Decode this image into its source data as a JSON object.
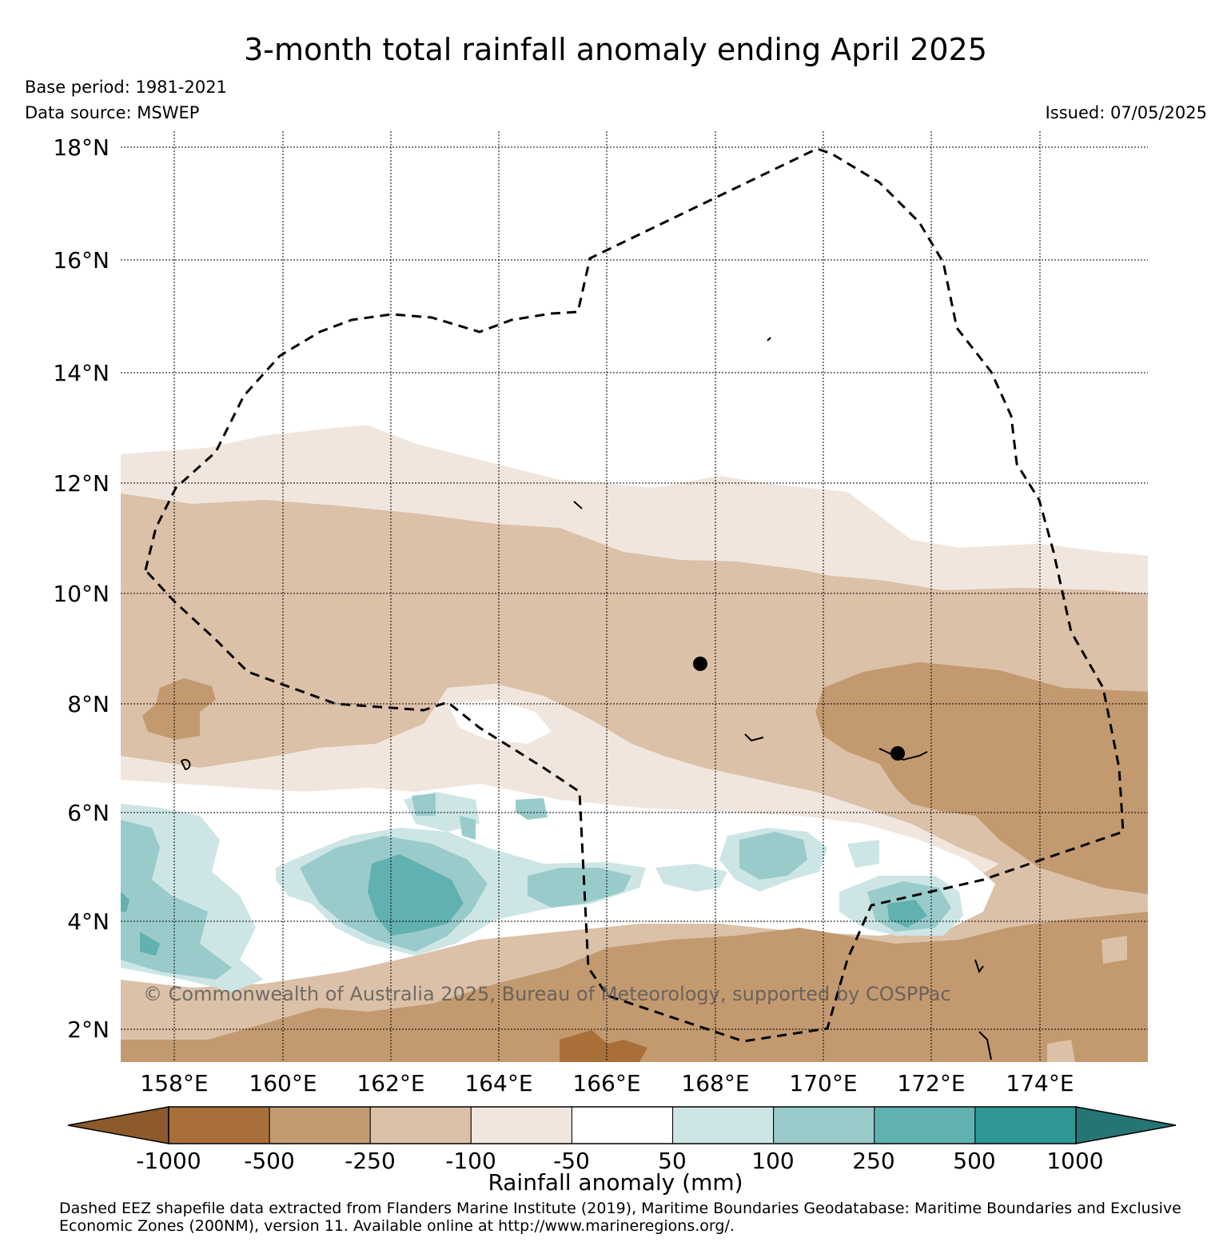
{
  "header": {
    "title": "3-month total rainfall anomaly ending April 2025",
    "base_period": "Base period: 1981-2021",
    "data_source": "Data source: MSWEP",
    "issued": "Issued: 07/05/2025"
  },
  "map": {
    "lat_labels": [
      "18°N",
      "16°N",
      "14°N",
      "12°N",
      "10°N",
      "8°N",
      "6°N",
      "4°N",
      "2°N"
    ],
    "lon_labels": [
      "158°E",
      "160°E",
      "162°E",
      "164°E",
      "166°E",
      "168°E",
      "170°E",
      "172°E",
      "174°E"
    ],
    "watermark": "© Commonwealth of Australia 2025, Bureau of Meteorology, supported by COSPPac",
    "boundary_style": "dashed EEZ boundary",
    "grid": true
  },
  "colorbar": {
    "label": "Rainfall anomaly (mm)",
    "ticks": [
      "-1000",
      "-500",
      "-250",
      "-100",
      "-50",
      "50",
      "100",
      "250",
      "500",
      "1000"
    ],
    "colors": [
      "#a86f39",
      "#c39a70",
      "#dbc1a8",
      "#f1e6de",
      "#ffffff",
      "#cde5e5",
      "#9acbcb",
      "#62b1b1",
      "#2f9894"
    ],
    "extend_low_color": "#8c5a2b",
    "extend_high_color": "#267575"
  },
  "footer": {
    "credit_line1": "Dashed EEZ shapefile data extracted from Flanders Marine Institute (2019), Maritime Boundaries Geodatabase: Maritime Boundaries and Exclusive",
    "credit_line2": "Economic Zones (200NM), version 11. Available online at http://www.marineregions.org/."
  }
}
